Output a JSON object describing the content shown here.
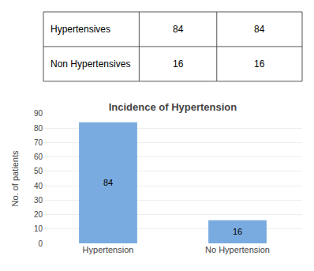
{
  "chart_data": [
    {
      "type": "table",
      "categories": [
        "Hypertensives",
        "Non Hypertensives"
      ],
      "series": [
        {
          "values": [
            84,
            16
          ]
        },
        {
          "values": [
            84,
            16
          ]
        }
      ]
    },
    {
      "type": "bar",
      "title": "Incidence of Hypertension",
      "categories": [
        "Hypertension",
        "No Hypertension"
      ],
      "values": [
        84,
        16
      ],
      "color": "#7aabe0",
      "ylabel": "No. of patients",
      "ylim": [
        0,
        90
      ],
      "yticks": [
        0,
        10,
        20,
        30,
        40,
        50,
        60,
        70,
        80,
        90
      ],
      "grid": true,
      "data_labels": true
    }
  ]
}
